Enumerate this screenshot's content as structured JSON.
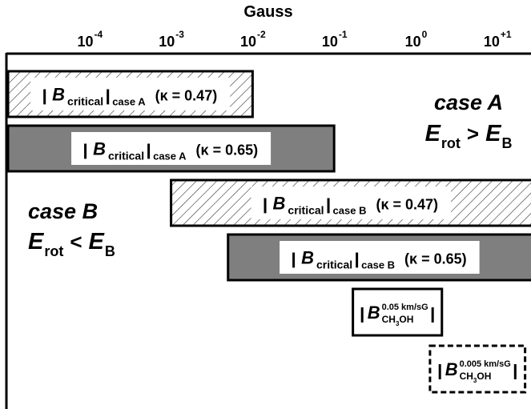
{
  "chart_data": {
    "type": "range-bar",
    "xlabel": "Gauss",
    "xscale": "log",
    "xlim": [
      1e-05,
      26
    ],
    "xticks": [
      {
        "value": 0.0001,
        "label": "10",
        "exponent": "-4"
      },
      {
        "value": 0.001,
        "label": "10",
        "exponent": "-3"
      },
      {
        "value": 0.01,
        "label": "10",
        "exponent": "-2"
      },
      {
        "value": 0.1,
        "label": "10",
        "exponent": "-1"
      },
      {
        "value": 1,
        "label": "10",
        "exponent": "0"
      },
      {
        "value": 10,
        "label": "10",
        "exponent": "+1"
      }
    ],
    "bars": [
      {
        "symbol": "B",
        "symbol_sub": "critical",
        "case": "case A",
        "kappa": "(κ = 0.47)",
        "range": [
          1e-05,
          0.01
        ],
        "style": "hatched"
      },
      {
        "symbol": "B",
        "symbol_sub": "critical",
        "case": "case A",
        "kappa": "(κ = 0.65)",
        "range": [
          1e-05,
          0.1
        ],
        "style": "gray"
      },
      {
        "symbol": "B",
        "symbol_sub": "critical",
        "case": "case B",
        "kappa": "(κ = 0.47)",
        "range": [
          0.001,
          30
        ],
        "style": "hatched"
      },
      {
        "symbol": "B",
        "symbol_sub": "critical",
        "case": "case B",
        "kappa": "(κ = 0.65)",
        "range": [
          0.005,
          30
        ],
        "style": "gray"
      }
    ],
    "boxes": [
      {
        "symbol": "B",
        "sup": "0.05 km/sG",
        "sub": [
          "CH",
          "3",
          "OH"
        ],
        "range": [
          0.17,
          2.1
        ],
        "style": "solid"
      },
      {
        "symbol": "B",
        "sup": "0.005 km/sG",
        "sub": [
          "CH",
          "3",
          "OH"
        ],
        "range": [
          1.5,
          22
        ],
        "style": "dashed"
      }
    ],
    "annotations": [
      {
        "title": "case A",
        "lhs": "E",
        "lhs_sub": "rot",
        "op": ">",
        "rhs": "E",
        "rhs_sub": "B"
      },
      {
        "title": "case B",
        "lhs": "E",
        "lhs_sub": "rot",
        "op": "<",
        "rhs": "E",
        "rhs_sub": "B"
      }
    ]
  }
}
